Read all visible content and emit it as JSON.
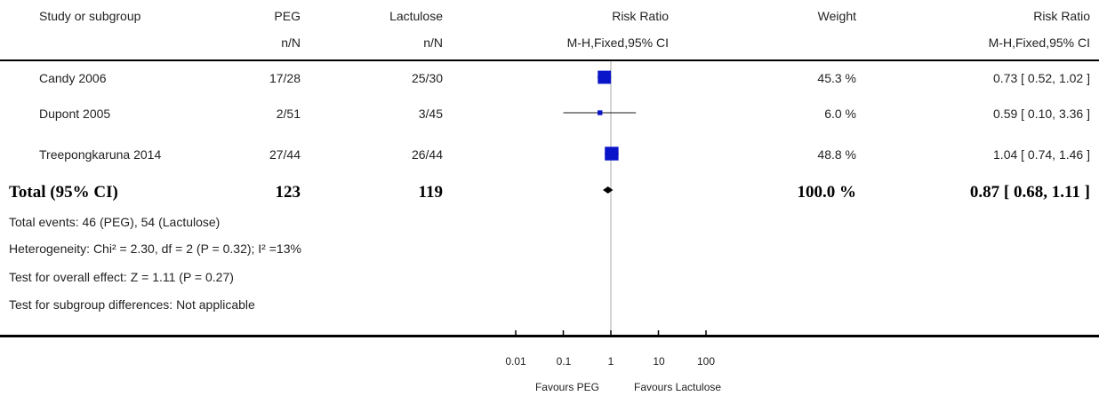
{
  "headers": {
    "study": "Study or subgroup",
    "group1": "PEG",
    "group1_sub": "n/N",
    "group2": "Lactulose",
    "group2_sub": "n/N",
    "effect": "Risk Ratio",
    "effect_sub": "M-H,Fixed,95% CI",
    "weight": "Weight",
    "ci": "Risk Ratio",
    "ci_sub": "M-H,Fixed,95% CI"
  },
  "studies": [
    {
      "name": "Candy 2006",
      "g1": "17/28",
      "g2": "25/30",
      "weight": "45.3 %",
      "ci_text": "0.73 [ 0.52, 1.02 ]"
    },
    {
      "name": "Dupont 2005",
      "g1": "2/51",
      "g2": "3/45",
      "weight": "6.0 %",
      "ci_text": "0.59 [ 0.10, 3.36 ]"
    },
    {
      "name": "Treepongkaruna 2014",
      "g1": "27/44",
      "g2": "26/44",
      "weight": "48.8 %",
      "ci_text": "1.04 [ 0.74, 1.46 ]"
    }
  ],
  "total": {
    "name": "Total (95% CI)",
    "g1": "123",
    "g2": "119",
    "weight": "100.0 %",
    "ci_text": "0.87 [ 0.68, 1.11 ]"
  },
  "notes": {
    "events": "Total events: 46 (PEG), 54 (Lactulose)",
    "heterogeneity": "Heterogeneity: Chi² = 2.30, df = 2 (P = 0.32); I² =13%",
    "overall": "Test for overall effect: Z = 1.11 (P = 0.27)",
    "subgroup": "Test for subgroup differences: Not applicable"
  },
  "axis": {
    "ticks": [
      "0.01",
      "0.1",
      "1",
      "10",
      "100"
    ],
    "favours_left": "Favours PEG",
    "favours_right": "Favours Lactulose"
  },
  "colors": {
    "marker": "#0a14c8",
    "line": "#1a1a1a",
    "ref_line": "#aaaaaa"
  },
  "chart_data": {
    "type": "scatter",
    "scale": "log",
    "xlim": [
      0.01,
      100
    ],
    "reference": 1,
    "studies": [
      {
        "name": "Candy 2006",
        "rr": 0.73,
        "lo": 0.52,
        "hi": 1.02,
        "weight": 45.3
      },
      {
        "name": "Dupont 2005",
        "rr": 0.59,
        "lo": 0.1,
        "hi": 3.36,
        "weight": 6.0
      },
      {
        "name": "Treepongkaruna 2014",
        "rr": 1.04,
        "lo": 0.74,
        "hi": 1.46,
        "weight": 48.8
      }
    ],
    "pooled": {
      "rr": 0.87,
      "lo": 0.68,
      "hi": 1.11
    }
  }
}
